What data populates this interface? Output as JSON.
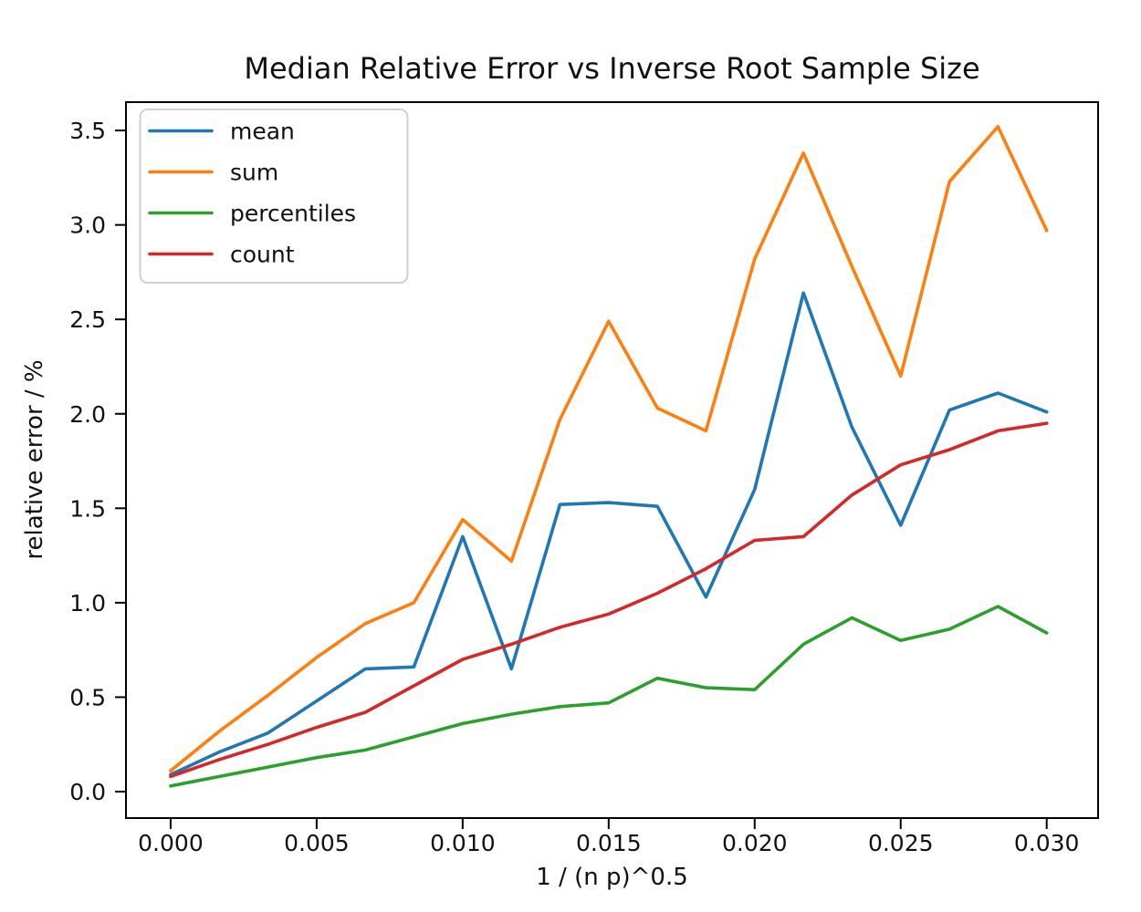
{
  "colors": {
    "background": "#ffffff",
    "text": "#111111",
    "spine": "#000000",
    "legend_border": "#cccccc",
    "legend_fill": "#ffffff"
  },
  "chart_data": {
    "type": "line",
    "title": "Median Relative Error vs Inverse Root Sample Size",
    "xlabel": "1 / (n p)^0.5",
    "ylabel": "relative error / %",
    "grid": false,
    "legend_position": "upper left",
    "xlim": [
      -0.00153,
      0.03176
    ],
    "ylim": [
      -0.14,
      3.65
    ],
    "x_ticks": {
      "values": [
        0.0,
        0.005,
        0.01,
        0.015,
        0.02,
        0.025,
        0.03
      ],
      "labels": [
        "0.000",
        "0.005",
        "0.010",
        "0.015",
        "0.020",
        "0.025",
        "0.030"
      ]
    },
    "y_ticks": {
      "values": [
        0.0,
        0.5,
        1.0,
        1.5,
        2.0,
        2.5,
        3.0,
        3.5
      ],
      "labels": [
        "0.0",
        "0.5",
        "1.0",
        "1.5",
        "2.0",
        "2.5",
        "3.0",
        "3.5"
      ]
    },
    "x": [
      0.0,
      0.00167,
      0.00333,
      0.005,
      0.00667,
      0.00833,
      0.01,
      0.01167,
      0.01333,
      0.015,
      0.01667,
      0.01833,
      0.02,
      0.02167,
      0.02333,
      0.025,
      0.02667,
      0.02833,
      0.03
    ],
    "series": [
      {
        "name": "mean",
        "color": "#1f77b4",
        "values": [
          0.09,
          0.21,
          0.31,
          0.48,
          0.65,
          0.66,
          1.35,
          0.65,
          1.52,
          1.53,
          1.51,
          1.03,
          1.6,
          2.64,
          1.93,
          1.41,
          2.02,
          2.11,
          2.01
        ]
      },
      {
        "name": "sum",
        "color": "#ff7f0e",
        "values": [
          0.11,
          0.32,
          0.51,
          0.71,
          0.89,
          1.0,
          1.44,
          1.22,
          1.97,
          2.49,
          2.03,
          1.91,
          2.82,
          3.38,
          2.78,
          2.2,
          3.23,
          3.52,
          2.97
        ]
      },
      {
        "name": "percentiles",
        "color": "#2ca02c",
        "values": [
          0.03,
          0.08,
          0.13,
          0.18,
          0.22,
          0.29,
          0.36,
          0.41,
          0.45,
          0.47,
          0.6,
          0.55,
          0.54,
          0.78,
          0.92,
          0.8,
          0.86,
          0.98,
          0.84
        ]
      },
      {
        "name": "count",
        "color": "#d62728",
        "values": [
          0.08,
          0.17,
          0.25,
          0.34,
          0.42,
          0.56,
          0.7,
          0.78,
          0.87,
          0.94,
          1.05,
          1.18,
          1.33,
          1.35,
          1.57,
          1.73,
          1.81,
          1.91,
          1.95
        ]
      }
    ]
  }
}
